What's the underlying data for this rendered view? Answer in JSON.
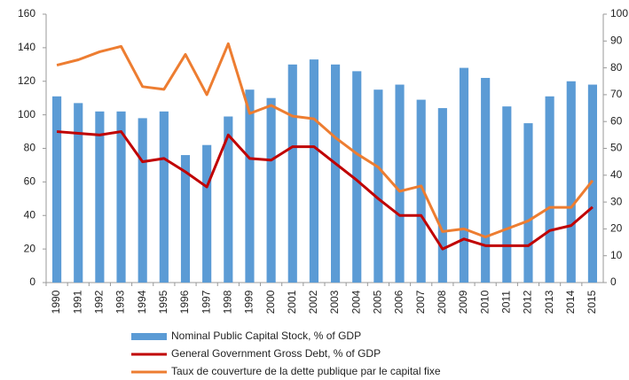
{
  "chart_data": {
    "type": "bar-line",
    "categories": [
      "1990",
      "1991",
      "1992",
      "1993",
      "1994",
      "1995",
      "1996",
      "1997",
      "1998",
      "1999",
      "2000",
      "2001",
      "2002",
      "2003",
      "2004",
      "2005",
      "2006",
      "2007",
      "2008",
      "2009",
      "2010",
      "2011",
      "2012",
      "2013",
      "2014",
      "2015"
    ],
    "series": [
      {
        "name": "Nominal Public Capital Stock, % of GDP",
        "type": "bar",
        "color": "#5b9bd5",
        "values": [
          111,
          107,
          102,
          102,
          98,
          102,
          76,
          82,
          99,
          115,
          110,
          130,
          133,
          130,
          126,
          115,
          118,
          109,
          104,
          128,
          122,
          105,
          95,
          111,
          120,
          118
        ]
      },
      {
        "name": "General Government Gross Debt, % of GDP",
        "type": "line",
        "color": "#c00000",
        "values": [
          90,
          89,
          88,
          90,
          72,
          74,
          66,
          57,
          88,
          74,
          73,
          81,
          81,
          71,
          61,
          50,
          40,
          40,
          20,
          26,
          22,
          22,
          22,
          31,
          34,
          45
        ]
      },
      {
        "name": "Taux de couverture de la dette publique par le capital fixe",
        "type": "line",
        "color": "#ed7d31",
        "axis": "y2",
        "values": [
          81,
          83,
          86,
          88,
          73,
          72,
          85,
          70,
          89,
          63,
          66,
          62,
          61,
          54,
          48,
          43,
          34,
          36,
          19,
          20,
          17,
          20,
          23,
          28,
          28,
          38
        ]
      }
    ],
    "ylim": [
      0,
      160
    ],
    "yticks": [
      0,
      20,
      40,
      60,
      80,
      100,
      120,
      140,
      160
    ],
    "y2lim": [
      0,
      100
    ],
    "y2ticks": [
      0,
      10,
      20,
      30,
      40,
      50,
      60,
      70,
      80,
      90,
      100
    ],
    "legend": "bottom"
  }
}
